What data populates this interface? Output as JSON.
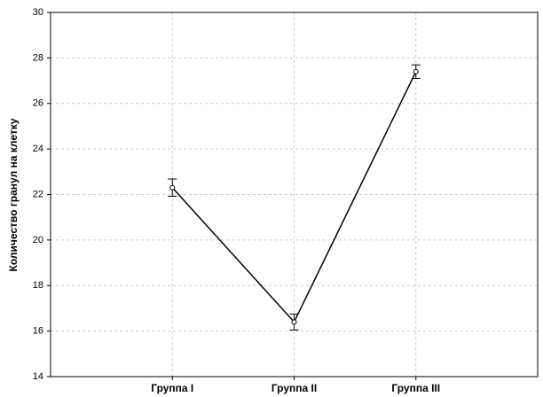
{
  "chart_data": {
    "type": "line",
    "y_label": "Количество гранул на клетку",
    "categories": [
      "Группа I",
      "Группа II",
      "Группа III"
    ],
    "values": [
      22.3,
      16.4,
      27.4
    ],
    "errors": [
      0.38,
      0.35,
      0.3
    ],
    "color": "#000000",
    "ylim": [
      14,
      30
    ],
    "yticks": [
      14,
      16,
      18,
      20,
      22,
      24,
      26,
      28,
      30
    ],
    "grid": true
  }
}
